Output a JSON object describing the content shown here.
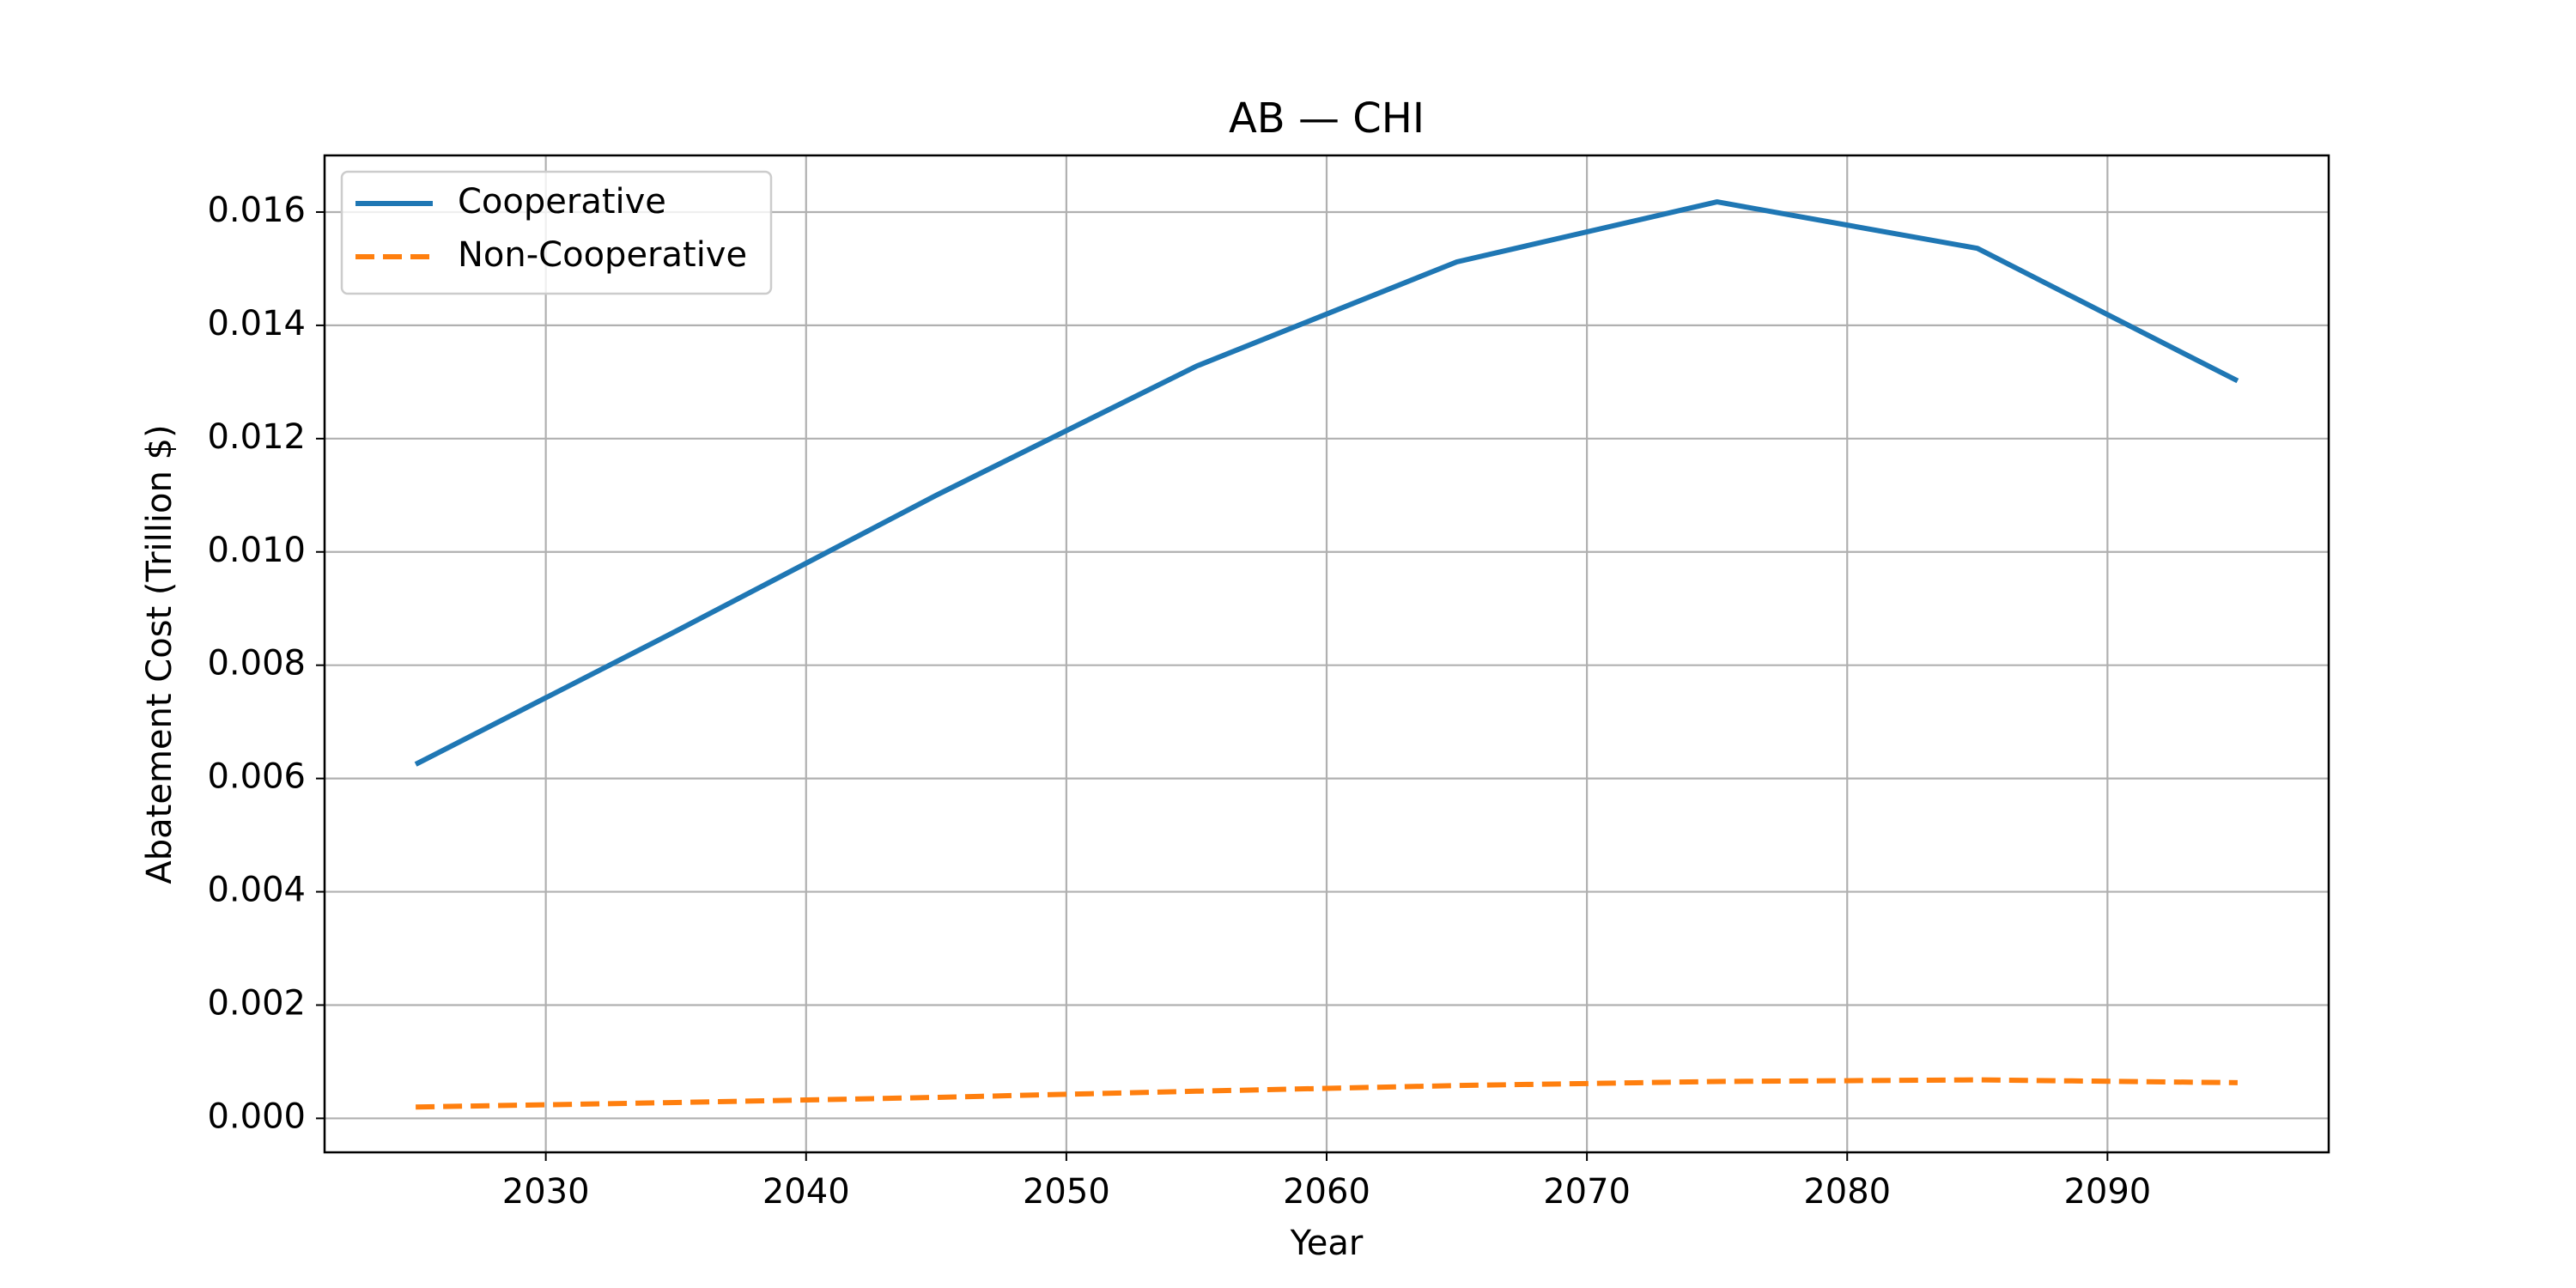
{
  "chart_data": {
    "type": "line",
    "title": "AB — CHI",
    "xlabel": "Year",
    "ylabel": "Abatement Cost (Trillion $)",
    "xlim": [
      2021.5,
      2098.5
    ],
    "ylim": [
      -0.0006,
      0.017
    ],
    "xticks": [
      2030,
      2040,
      2050,
      2060,
      2070,
      2080,
      2090
    ],
    "yticks": [
      0.0,
      0.002,
      0.004,
      0.006,
      0.008,
      0.01,
      0.012,
      0.014,
      0.016
    ],
    "ytick_labels": [
      "0.000",
      "0.002",
      "0.004",
      "0.006",
      "0.008",
      "0.010",
      "0.012",
      "0.014",
      "0.016"
    ],
    "grid": true,
    "legend_position": "top-left",
    "x": [
      2025,
      2035,
      2045,
      2055,
      2065,
      2075,
      2085,
      2095
    ],
    "series": [
      {
        "name": "Cooperative",
        "color": "#1f77b4",
        "style": "solid",
        "values": [
          0.00625,
          0.0086,
          0.011,
          0.01328,
          0.01512,
          0.01618,
          0.01536,
          0.01302
        ]
      },
      {
        "name": "Non-Cooperative",
        "color": "#ff7f0e",
        "style": "dashed",
        "values": [
          0.0002,
          0.00028,
          0.00037,
          0.00048,
          0.00058,
          0.00065,
          0.00068,
          0.00063
        ]
      }
    ]
  }
}
